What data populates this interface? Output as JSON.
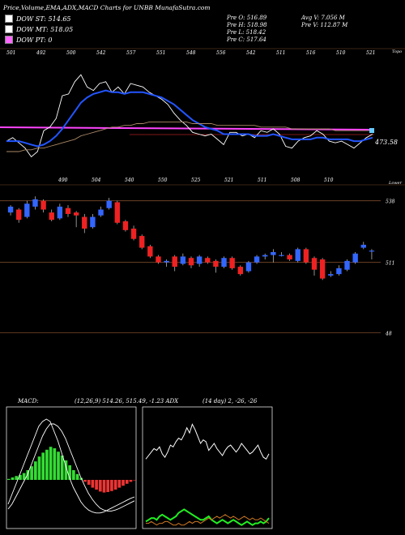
{
  "header": {
    "title": "Price,Volume,EMA,ADX,MACD Charts for UNBB MunafaSutra.com",
    "legend": [
      {
        "label": "DOW ST: 514.65",
        "color": "#ffffff"
      },
      {
        "label": "DOW MT: 518.05",
        "color": "#ffffff"
      },
      {
        "label": "DOW PT: 0",
        "color": "#ff66ff"
      }
    ],
    "stats_left": [
      "Pre  O: 516.89",
      "Pre  H: 518.98",
      "Pre  L: 518.42",
      "Pre  C: 517.64"
    ],
    "stats_right": [
      "Avg V: 7.056  M",
      "Pre  V: 112.87 M"
    ]
  },
  "price_panel": {
    "top_numbers": [
      "501",
      "492",
      "500",
      "542",
      "557",
      "551",
      "548",
      "556",
      "542",
      "511",
      "516",
      "510",
      "521"
    ],
    "bottom_numbers": [
      "490",
      "504",
      "540",
      "550",
      "525",
      "521",
      "511",
      "508",
      "510"
    ],
    "topo_label": "Topo",
    "lower_label": "Lower",
    "price_label": "473.58",
    "level_labels": [
      "538",
      "511",
      "48"
    ]
  },
  "macd_panel": {
    "label": "MACD:",
    "values": "(12,26,9) 514.26, 515.49, -1.23 ADX"
  },
  "adx_panel": {
    "values": "(14  day) 2, -26, -26"
  },
  "chart_data": [
    {
      "type": "line",
      "name": "price-ema",
      "series": [
        {
          "name": "price",
          "color": "#ffffff",
          "values": [
            514,
            516,
            513,
            510,
            505,
            508,
            520,
            522,
            527,
            540,
            541,
            548,
            552,
            545,
            543,
            547,
            548,
            542,
            545,
            541,
            547,
            546,
            545,
            542,
            540,
            538,
            535,
            530,
            526,
            523,
            519,
            518,
            517,
            518,
            515,
            512,
            519,
            519,
            517,
            518,
            516,
            520,
            519,
            521,
            518,
            511,
            510,
            514,
            516,
            517,
            520,
            518,
            514,
            513,
            514,
            512,
            510,
            513,
            516,
            518
          ]
        },
        {
          "name": "ema-short",
          "color": "#2255ff",
          "values": [
            514,
            514,
            514,
            513,
            512,
            511,
            512,
            514,
            517,
            521,
            526,
            531,
            536,
            539,
            541,
            542,
            543,
            542,
            542,
            541,
            542,
            542,
            542,
            541,
            540,
            539,
            537,
            535,
            532,
            529,
            526,
            524,
            522,
            521,
            520,
            518,
            518,
            518,
            518,
            518,
            517,
            517,
            517,
            518,
            517,
            516,
            515,
            515,
            515,
            515,
            516,
            516,
            515,
            515,
            515,
            515,
            514,
            514,
            515,
            516
          ]
        },
        {
          "name": "ema-long",
          "color": "#aa8866",
          "values": [
            508,
            508,
            508,
            509,
            509,
            510,
            510,
            511,
            512,
            513,
            514,
            515,
            517,
            518,
            519,
            520,
            521,
            522,
            522,
            523,
            523,
            524,
            524,
            525,
            525,
            525,
            525,
            525,
            525,
            525,
            524,
            524,
            524,
            524,
            523,
            523,
            523,
            523,
            523,
            523,
            523,
            522,
            522,
            522,
            522,
            522,
            521,
            521,
            521,
            521,
            521,
            521,
            521,
            520,
            520,
            520,
            520,
            520,
            520,
            520
          ]
        }
      ]
    },
    {
      "type": "candlestick",
      "name": "daily-candles",
      "colors": {
        "up": "#3366ff",
        "down": "#ee2222"
      },
      "candles": [
        {
          "o": 530,
          "c": 534,
          "h": 535,
          "l": 528
        },
        {
          "o": 532,
          "c": 525,
          "h": 533,
          "l": 523
        },
        {
          "o": 527,
          "c": 536,
          "h": 538,
          "l": 526
        },
        {
          "o": 534,
          "c": 539,
          "h": 541,
          "l": 532
        },
        {
          "o": 538,
          "c": 532,
          "h": 539,
          "l": 530
        },
        {
          "o": 530,
          "c": 525,
          "h": 532,
          "l": 524
        },
        {
          "o": 526,
          "c": 534,
          "h": 536,
          "l": 525
        },
        {
          "o": 533,
          "c": 529,
          "h": 535,
          "l": 527
        },
        {
          "o": 530,
          "c": 528,
          "h": 531,
          "l": 520
        },
        {
          "o": 527,
          "c": 519,
          "h": 529,
          "l": 516
        },
        {
          "o": 520,
          "c": 527,
          "h": 529,
          "l": 519
        },
        {
          "o": 528,
          "c": 532,
          "h": 534,
          "l": 527
        },
        {
          "o": 533,
          "c": 538,
          "h": 540,
          "l": 532
        },
        {
          "o": 537,
          "c": 523,
          "h": 538,
          "l": 522
        },
        {
          "o": 524,
          "c": 518,
          "h": 525,
          "l": 517
        },
        {
          "o": 519,
          "c": 512,
          "h": 521,
          "l": 511
        },
        {
          "o": 514,
          "c": 506,
          "h": 515,
          "l": 505
        },
        {
          "o": 507,
          "c": 500,
          "h": 508,
          "l": 499
        },
        {
          "o": 500,
          "c": 496,
          "h": 501,
          "l": 495
        },
        {
          "o": 496,
          "c": 497,
          "h": 498,
          "l": 493
        },
        {
          "o": 500,
          "c": 493,
          "h": 501,
          "l": 490
        },
        {
          "o": 495,
          "c": 500,
          "h": 502,
          "l": 494
        },
        {
          "o": 499,
          "c": 494,
          "h": 500,
          "l": 492
        },
        {
          "o": 495,
          "c": 500,
          "h": 501,
          "l": 493
        },
        {
          "o": 499,
          "c": 496,
          "h": 500,
          "l": 495
        },
        {
          "o": 497,
          "c": 493,
          "h": 498,
          "l": 489
        },
        {
          "o": 493,
          "c": 499,
          "h": 500,
          "l": 492
        },
        {
          "o": 499,
          "c": 492,
          "h": 500,
          "l": 491
        },
        {
          "o": 493,
          "c": 488,
          "h": 494,
          "l": 487
        },
        {
          "o": 490,
          "c": 496,
          "h": 497,
          "l": 489
        },
        {
          "o": 496,
          "c": 500,
          "h": 501,
          "l": 495
        },
        {
          "o": 500,
          "c": 501,
          "h": 502,
          "l": 498
        },
        {
          "o": 501,
          "c": 503,
          "h": 505,
          "l": 496
        },
        {
          "o": 501,
          "c": 501,
          "h": 503,
          "l": 500
        },
        {
          "o": 501,
          "c": 498,
          "h": 502,
          "l": 497
        },
        {
          "o": 497,
          "c": 505,
          "h": 506,
          "l": 496
        },
        {
          "o": 505,
          "c": 496,
          "h": 506,
          "l": 495
        },
        {
          "o": 499,
          "c": 491,
          "h": 500,
          "l": 487
        },
        {
          "o": 498,
          "c": 485,
          "h": 499,
          "l": 484
        },
        {
          "o": 487,
          "c": 488,
          "h": 490,
          "l": 486
        },
        {
          "o": 488,
          "c": 492,
          "h": 494,
          "l": 487
        },
        {
          "o": 491,
          "c": 497,
          "h": 498,
          "l": 490
        },
        {
          "o": 496,
          "c": 502,
          "h": 503,
          "l": 495
        },
        {
          "o": 506,
          "c": 508,
          "h": 510,
          "l": 505
        },
        {
          "o": 504,
          "c": 504,
          "h": 505,
          "l": 498
        }
      ]
    },
    {
      "type": "line",
      "name": "macd",
      "histogram": [
        0.2,
        0.5,
        0.8,
        1.0,
        1.4,
        2.0,
        2.8,
        3.8,
        4.8,
        5.6,
        6.2,
        6.8,
        6.5,
        5.8,
        5.0,
        4.0,
        3.0,
        2.0,
        1.2,
        0.4,
        -0.4,
        -1.0,
        -1.6,
        -2.0,
        -2.4,
        -2.6,
        -2.5,
        -2.3,
        -2.0,
        -1.6,
        -1.2,
        -0.8,
        -0.4,
        -0.1
      ],
      "series": [
        {
          "name": "macd",
          "color": "#ffffff",
          "values": [
            -5,
            -3,
            -1,
            1,
            3,
            5,
            7,
            9,
            11,
            12,
            12.5,
            12,
            10,
            8,
            5.5,
            3,
            0.5,
            -1.5,
            -3,
            -4.5,
            -5.5,
            -6.2,
            -6.6,
            -6.8,
            -6.8,
            -6.6,
            -6.2,
            -5.8,
            -5.4,
            -5,
            -4.6,
            -4.2,
            -3.8,
            -3.5
          ]
        },
        {
          "name": "signal",
          "color": "#ffffff",
          "values": [
            -6,
            -5,
            -3.5,
            -2,
            -0.5,
            1,
            3,
            5,
            7,
            9,
            10.5,
            11.5,
            11.5,
            11,
            10,
            8.5,
            6.5,
            4.5,
            2.5,
            0.5,
            -1.2,
            -2.8,
            -4,
            -5,
            -5.8,
            -6.2,
            -6.4,
            -6.4,
            -6.2,
            -5.9,
            -5.5,
            -5.1,
            -4.7,
            -4.3
          ]
        }
      ],
      "ylim": [
        -10,
        15
      ]
    },
    {
      "type": "line",
      "name": "adx",
      "series": [
        {
          "name": "adx",
          "color": "#ffffff",
          "values": [
            40,
            42,
            44,
            46,
            45,
            47,
            43,
            41,
            44,
            48,
            47,
            50,
            52,
            51,
            54,
            58,
            55,
            60,
            57,
            53,
            49,
            51,
            50,
            45,
            47,
            49,
            46,
            44,
            42,
            45,
            47,
            48,
            46,
            44,
            46,
            49,
            47,
            45,
            43,
            44,
            46,
            48,
            44,
            41,
            40,
            43
          ]
        },
        {
          "name": "di-plus",
          "color": "#22ee22",
          "values": [
            4,
            5,
            6,
            6,
            5,
            7,
            8,
            7,
            6,
            5,
            6,
            7,
            9,
            10,
            11,
            10,
            9,
            8,
            7,
            6,
            5,
            5,
            6,
            7,
            5,
            4,
            3,
            4,
            5,
            4,
            3,
            4,
            5,
            4,
            3,
            2,
            3,
            4,
            3,
            2,
            3,
            3,
            4,
            3,
            4,
            6
          ]
        },
        {
          "name": "di-minus",
          "color": "#cc7722",
          "values": [
            3,
            3,
            4,
            3,
            2,
            3,
            3,
            4,
            4,
            3,
            2,
            2,
            3,
            2,
            2,
            3,
            4,
            3,
            4,
            4,
            3,
            4,
            5,
            6,
            5,
            6,
            7,
            6,
            7,
            8,
            7,
            6,
            7,
            6,
            5,
            6,
            7,
            6,
            5,
            6,
            5,
            5,
            6,
            5,
            4,
            3
          ]
        }
      ],
      "ylim": [
        0,
        70
      ]
    }
  ]
}
